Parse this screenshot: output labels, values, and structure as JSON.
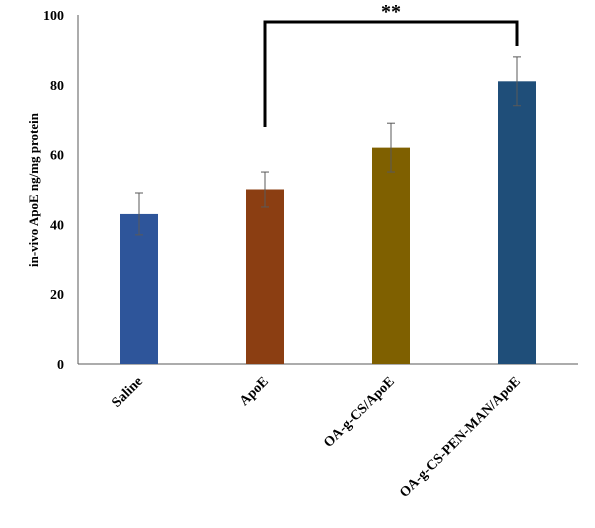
{
  "chart_data": {
    "type": "bar",
    "categories": [
      "Saline",
      "ApoE",
      "OA-g-CS/ApoE",
      "OA-g-CS-PEN-MAN/ApoE"
    ],
    "values": [
      43,
      50,
      62,
      81
    ],
    "errors": [
      6,
      5,
      7,
      7
    ],
    "colors": [
      "#2E559A",
      "#8B3E12",
      "#7F6000",
      "#1F4E79"
    ],
    "title": "",
    "xlabel": "",
    "ylabel": "in-vivo ApoE  ng/mg  protein",
    "ylim": [
      0,
      100
    ],
    "yticks": [
      "0",
      "20",
      "40",
      "60",
      "80",
      "100"
    ],
    "grid": false,
    "significance": {
      "from": "ApoE",
      "to": "OA-g-CS-PEN-MAN/ApoE",
      "label": "**"
    }
  }
}
